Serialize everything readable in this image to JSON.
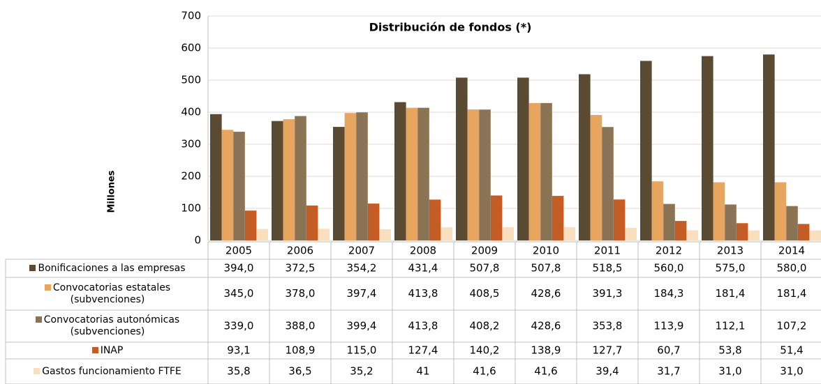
{
  "chart_data": {
    "type": "bar",
    "title": "Distribución de fondos (*)",
    "y_label": "Millones",
    "categories": [
      "2005",
      "2006",
      "2007",
      "2008",
      "2009",
      "2010",
      "2011",
      "2012",
      "2013",
      "2014"
    ],
    "ylim": [
      0,
      700
    ],
    "yticks": [
      0,
      100,
      200,
      300,
      400,
      500,
      600,
      700
    ],
    "grid": true,
    "series": [
      {
        "name": "Bonificaciones a las empresas",
        "color": "#5a4a32",
        "values": [
          394.0,
          372.5,
          354.2,
          431.4,
          507.8,
          507.8,
          518.5,
          560.0,
          575.0,
          580.0
        ],
        "value_labels": [
          "394,0",
          "372,5",
          "354,2",
          "431,4",
          "507,8",
          "507,8",
          "518,5",
          "560,0",
          "575,0",
          "580,0"
        ]
      },
      {
        "name": "Convocatorias estatales (subvenciones)",
        "color": "#e8a560",
        "values": [
          345.0,
          378.0,
          397.4,
          413.8,
          408.5,
          428.6,
          391.3,
          184.3,
          181.4,
          181.4
        ],
        "value_labels": [
          "345,0",
          "378,0",
          "397,4",
          "413,8",
          "408,5",
          "428,6",
          "391,3",
          "184,3",
          "181,4",
          "181,4"
        ]
      },
      {
        "name": "Convocatorias autonómicas (subvenciones)",
        "color": "#8b7355",
        "values": [
          339.0,
          388.0,
          399.4,
          413.8,
          408.2,
          428.6,
          353.8,
          113.9,
          112.1,
          107.2
        ],
        "value_labels": [
          "339,0",
          "388,0",
          "399,4",
          "413,8",
          "408,2",
          "428,6",
          "353,8",
          "113,9",
          "112,1",
          "107,2"
        ]
      },
      {
        "name": "INAP",
        "color": "#c45c26",
        "values": [
          93.1,
          108.9,
          115.0,
          127.4,
          140.2,
          138.9,
          127.7,
          60.7,
          53.8,
          51.4
        ],
        "value_labels": [
          "93,1",
          "108,9",
          "115,0",
          "127,4",
          "140,2",
          "138,9",
          "127,7",
          "60,7",
          "53,8",
          "51,4"
        ]
      },
      {
        "name": "Gastos funcionamiento FTFE",
        "color": "#f7dfc0",
        "values": [
          35.8,
          36.5,
          35.2,
          41,
          41.6,
          41.6,
          39.4,
          31.7,
          31.0,
          31.0
        ],
        "value_labels": [
          "35,8",
          "36,5",
          "35,2",
          "41",
          "41,6",
          "41,6",
          "39,4",
          "31,7",
          "31,0",
          "31,0"
        ]
      }
    ]
  }
}
